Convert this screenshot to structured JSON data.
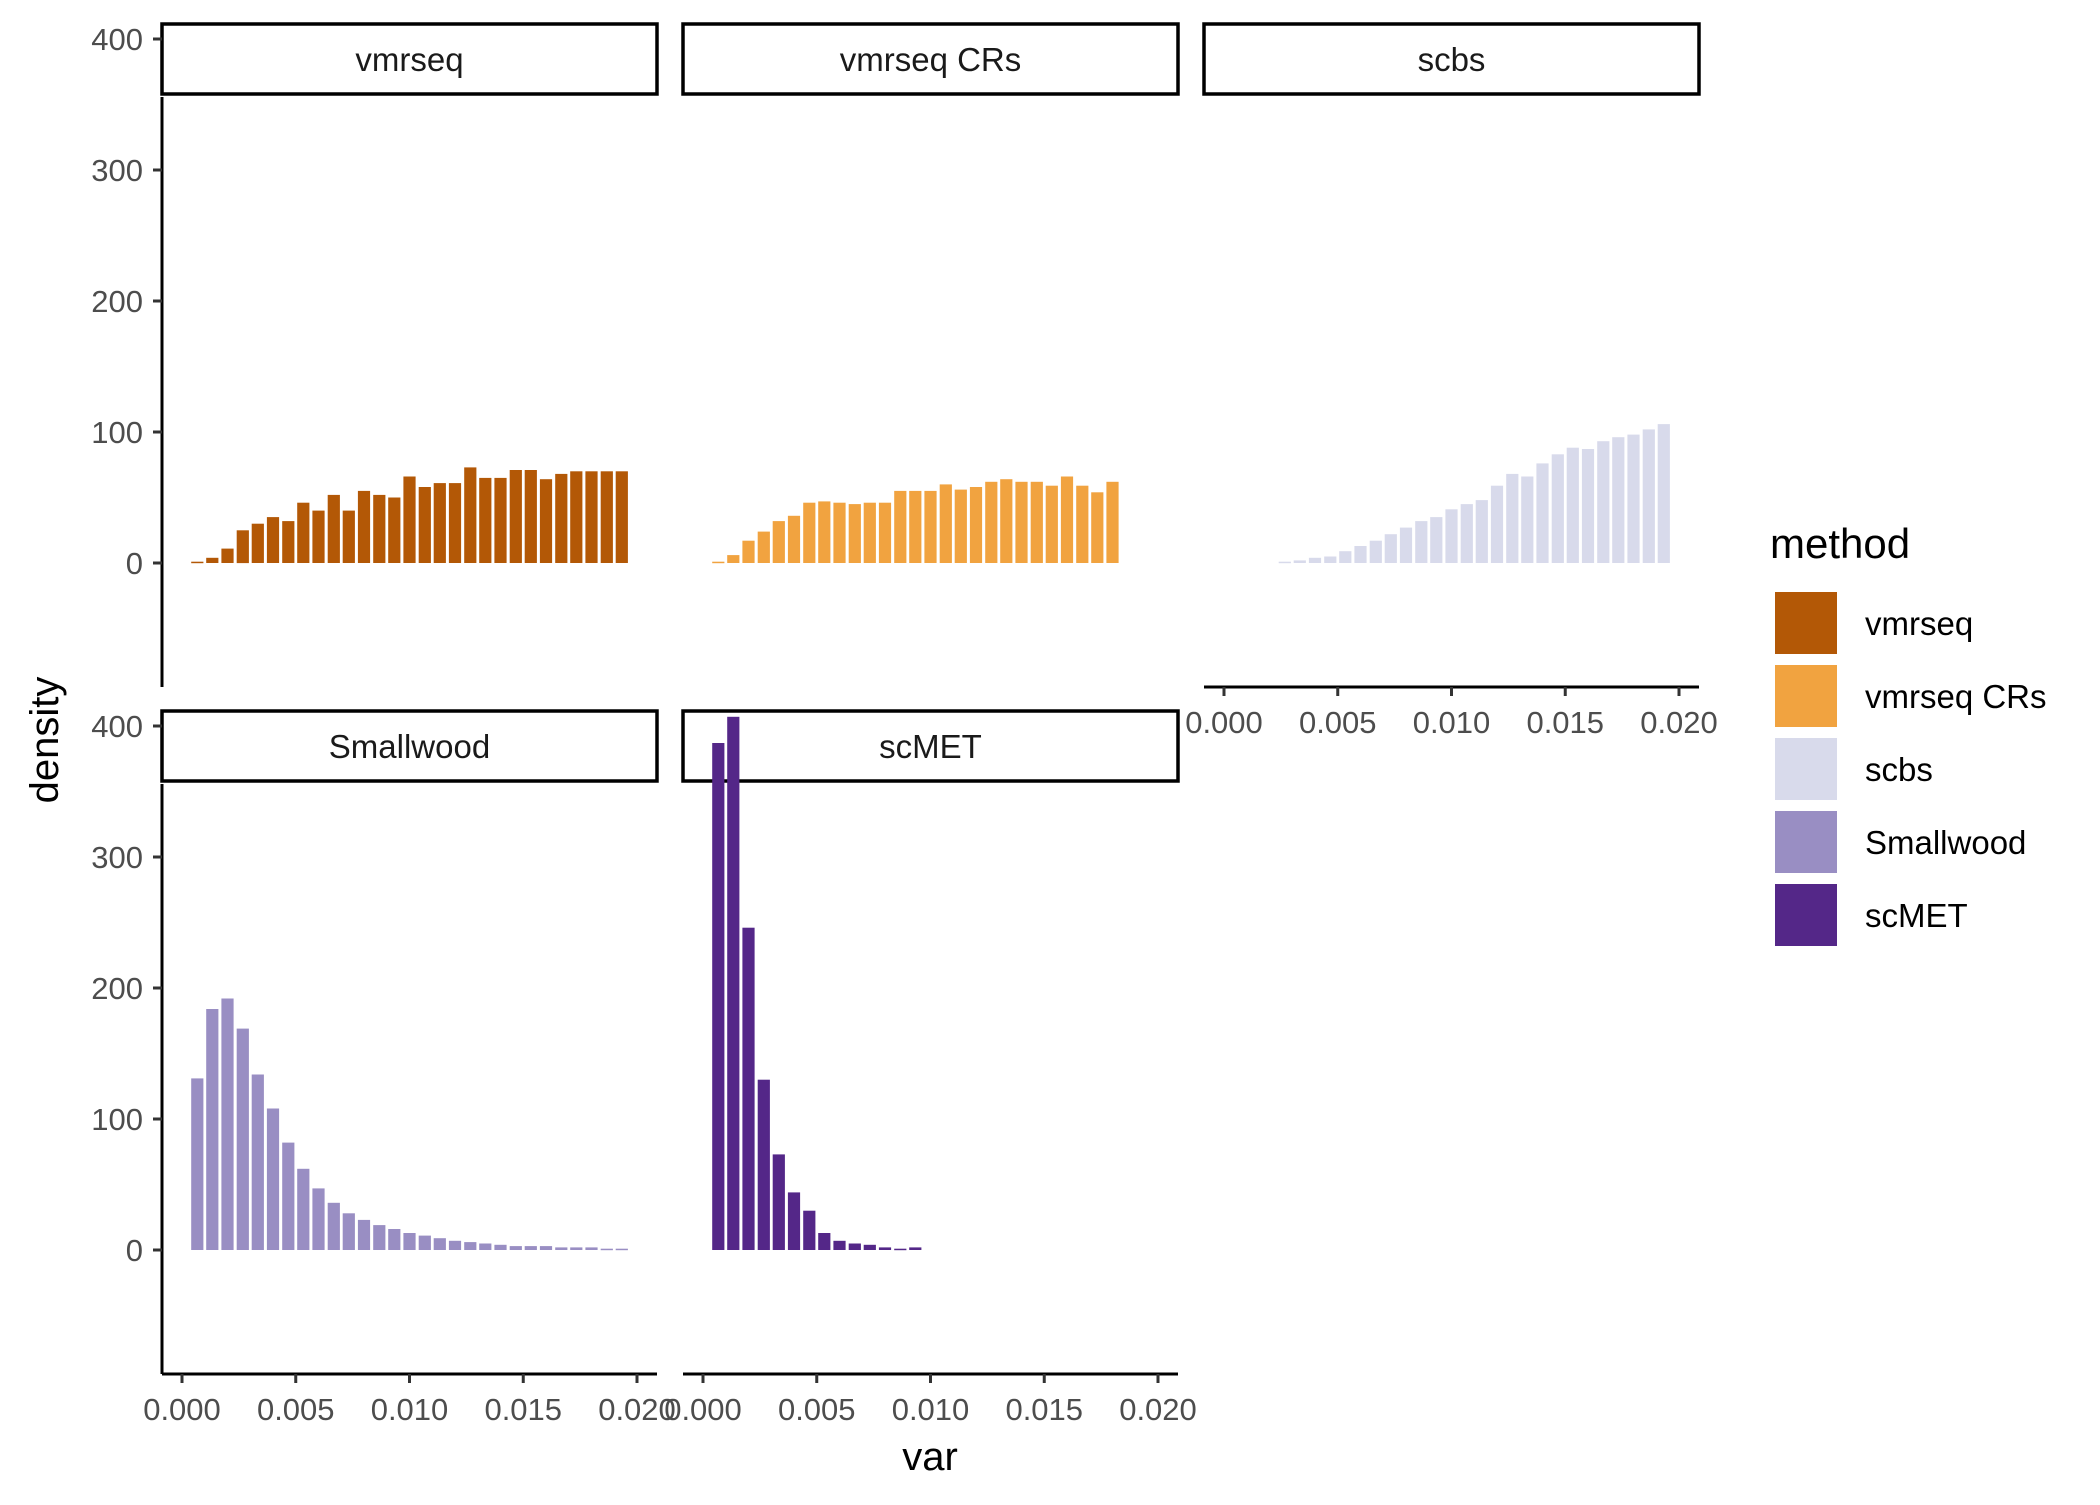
{
  "chart_data": {
    "type": "bar",
    "subtype": "faceted-histogram",
    "xlabel": "var",
    "ylabel": "density",
    "xlim": [
      0,
      0.02
    ],
    "ylim": [
      0,
      400
    ],
    "x_ticks": [
      "0.000",
      "0.005",
      "0.010",
      "0.015",
      "0.020"
    ],
    "y_ticks": [
      "0",
      "100",
      "200",
      "300",
      "400"
    ],
    "grid": false,
    "legend": {
      "title": "method",
      "position": "right",
      "entries": [
        {
          "label": "vmrseq",
          "color": "#b35806"
        },
        {
          "label": "vmrseq CRs",
          "color": "#f1a340"
        },
        {
          "label": "scbs",
          "color": "#d8daeb"
        },
        {
          "label": "Smallwood",
          "color": "#998ec3"
        },
        {
          "label": "scMET",
          "color": "#542788"
        }
      ]
    },
    "bin_width": 0.000667,
    "bin_centers": [
      0.00067,
      0.00133,
      0.002,
      0.00267,
      0.00333,
      0.004,
      0.00467,
      0.00533,
      0.006,
      0.00667,
      0.00733,
      0.008,
      0.00867,
      0.00933,
      0.01,
      0.01067,
      0.01133,
      0.012,
      0.01267,
      0.01333,
      0.014,
      0.01467,
      0.01533,
      0.016,
      0.01667,
      0.01733,
      0.018,
      0.01867,
      0.01933
    ],
    "panels": [
      {
        "name": "vmrseq",
        "color": "#b35806",
        "values": [
          1,
          4,
          11,
          25,
          30,
          35,
          32,
          46,
          40,
          52,
          40,
          55,
          52,
          50,
          66,
          58,
          61,
          61,
          73,
          65,
          65,
          71,
          71,
          64,
          68,
          70,
          70,
          70,
          70
        ]
      },
      {
        "name": "vmrseq CRs",
        "color": "#f1a340",
        "values": [
          1,
          6,
          17,
          24,
          32,
          36,
          46,
          47,
          46,
          45,
          46,
          46,
          55,
          55,
          55,
          60,
          56,
          58,
          62,
          64,
          62,
          62,
          59,
          66,
          59,
          54,
          62,
          0,
          0
        ]
      },
      {
        "name": "scbs",
        "color": "#d8daeb",
        "values": [
          0,
          0,
          0,
          1,
          2,
          4,
          5,
          9,
          13,
          17,
          22,
          27,
          32,
          35,
          41,
          45,
          48,
          59,
          68,
          66,
          76,
          83,
          88,
          87,
          93,
          96,
          98,
          102,
          106
        ]
      },
      {
        "name": "Smallwood",
        "color": "#998ec3",
        "values": [
          131,
          184,
          192,
          169,
          134,
          108,
          82,
          62,
          47,
          36,
          28,
          23,
          19,
          16,
          13,
          11,
          9,
          7,
          6,
          5,
          4,
          3,
          3,
          3,
          2,
          2,
          2,
          1,
          1
        ]
      },
      {
        "name": "scMET",
        "color": "#542788",
        "values": [
          387,
          407,
          246,
          130,
          73,
          44,
          30,
          13,
          7,
          5,
          4,
          2,
          1,
          2,
          0,
          0,
          0,
          0,
          0,
          0,
          0,
          0,
          0,
          0,
          0,
          0,
          0,
          0,
          0
        ]
      }
    ]
  }
}
